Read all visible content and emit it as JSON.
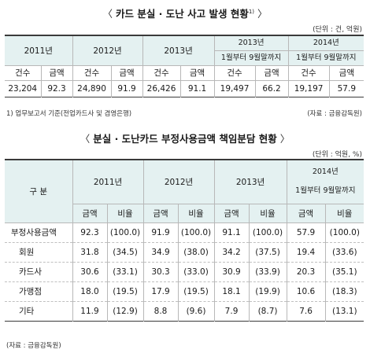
{
  "table1": {
    "title": "카드 분실 · 도난 사고 발생 현황",
    "title_sup": "1)",
    "unit": "(단위 : 건, 억원)",
    "years": [
      "2011년",
      "2012년",
      "2013년",
      "2013년",
      "2014년"
    ],
    "period_2013": "1월부터 9월말까지",
    "period_2014": "1월부터 9월말까지",
    "col_count": "건수",
    "col_amount": "금액",
    "rows": [
      [
        "23,204",
        "92.3",
        "24,890",
        "91.9",
        "26,426",
        "91.1",
        "19,497",
        "66.2",
        "19,197",
        "57.9"
      ]
    ],
    "footnote": "1) 업무보고서 기준(전업카드사 및 겸영은행)",
    "source": "(자료 : 금융감독원)"
  },
  "table2": {
    "title": "분실 · 도난카드 부정사용금액 책임분담 현황",
    "unit": "(단위 : 억원, %)",
    "header_label": "구 분",
    "years": [
      "2011년",
      "2012년",
      "2013년",
      "2014년"
    ],
    "period_2014": "1월부터 9월말까지",
    "col_amount": "금액",
    "col_ratio": "비율",
    "rows": [
      {
        "label": "부정사용금액",
        "values": [
          "92.3",
          "(100.0)",
          "91.9",
          "(100.0)",
          "91.1",
          "(100.0)",
          "57.9",
          "(100.0)"
        ]
      },
      {
        "label": "회원",
        "values": [
          "31.8",
          "(34.5)",
          "34.9",
          "(38.0)",
          "34.2",
          "(37.5)",
          "19.4",
          "(33.6)"
        ]
      },
      {
        "label": "카드사",
        "values": [
          "30.6",
          "(33.1)",
          "30.3",
          "(33.0)",
          "30.9",
          "(33.9)",
          "20.3",
          "(35.1)"
        ]
      },
      {
        "label": "가맹점",
        "values": [
          "18.0",
          "(19.5)",
          "17.9",
          "(19.5)",
          "18.1",
          "(19.9)",
          "10.6",
          "(18.3)"
        ]
      },
      {
        "label": "기타",
        "values": [
          "11.9",
          "(12.9)",
          "8.8",
          "(9.6)",
          "7.9",
          "(8.7)",
          "7.6",
          "(13.1)"
        ]
      }
    ],
    "source": "(자료 : 금융감독원)"
  },
  "colors": {
    "header_shade": "#e4f1f1",
    "rule": "#3a3a3a",
    "grid": "#b8b8b8"
  }
}
